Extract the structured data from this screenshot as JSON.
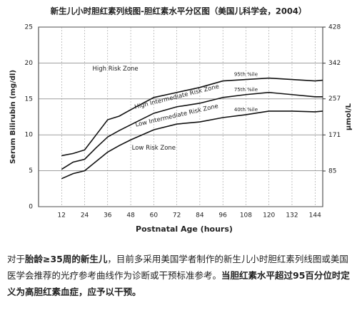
{
  "chart_data": {
    "type": "line",
    "title": "新生儿小时胆红素列线图-胆红素水平分区图（美国儿科学会，2004）",
    "x_label": "Postnatal Age (hours)",
    "y_label": "Serum Bilirubin (mg/dl)",
    "y2_label": "μmol/L",
    "xlim": [
      0,
      148
    ],
    "xticks": [
      12,
      24,
      36,
      48,
      60,
      72,
      84,
      96,
      108,
      120,
      132,
      144
    ],
    "ylim": [
      0,
      25
    ],
    "yticks": [
      0,
      5,
      10,
      15,
      20,
      25
    ],
    "y2lim": [
      0,
      428
    ],
    "y2ticks": [
      85,
      171,
      257,
      342,
      428
    ],
    "grid": true,
    "x": [
      12,
      18,
      24,
      30,
      36,
      42,
      48,
      60,
      72,
      84,
      96,
      108,
      120,
      132,
      144,
      148
    ],
    "series": [
      {
        "name": "95th %ile",
        "color": "#111111",
        "values": [
          7.1,
          7.4,
          7.9,
          10.0,
          12.1,
          12.6,
          13.5,
          15.2,
          15.9,
          16.6,
          17.5,
          17.7,
          17.9,
          17.7,
          17.5,
          17.6
        ]
      },
      {
        "name": "75th %ile",
        "color": "#111111",
        "values": [
          5.2,
          6.2,
          6.6,
          8.2,
          9.7,
          10.6,
          11.4,
          13.0,
          13.9,
          14.4,
          15.2,
          15.6,
          15.9,
          15.6,
          15.3,
          15.3
        ]
      },
      {
        "name": "40th %ile",
        "color": "#111111",
        "values": [
          3.9,
          4.6,
          5.0,
          6.3,
          7.6,
          8.5,
          9.3,
          10.7,
          11.5,
          11.8,
          12.4,
          12.8,
          13.3,
          13.3,
          13.2,
          13.3
        ]
      }
    ],
    "annotations": [
      {
        "text": "High Risk Zone",
        "x": 40,
        "y": 19.2,
        "angle": 0
      },
      {
        "text": "High Intermediate Risk Zone",
        "x": 72,
        "y": 15.3,
        "angle": -14
      },
      {
        "text": "Low Intermediate Risk Zone",
        "x": 72,
        "y": 12.7,
        "angle": -13
      },
      {
        "text": "Low Risk Zone",
        "x": 60,
        "y": 8.2,
        "angle": 0
      }
    ]
  },
  "caption": [
    {
      "text": "对于",
      "bold": false
    },
    {
      "text": "胎龄≥35周的新生儿",
      "bold": true
    },
    {
      "text": "，目前多采用美国学者制作的新生儿小时胆红素列线图或美国医学会推荐的光疗参考曲线作为诊断或干预标准参考。",
      "bold": false
    },
    {
      "text": "当胆红素水平超过95百分位时定义为高胆红素血症，应予以干预。",
      "bold": true
    }
  ]
}
